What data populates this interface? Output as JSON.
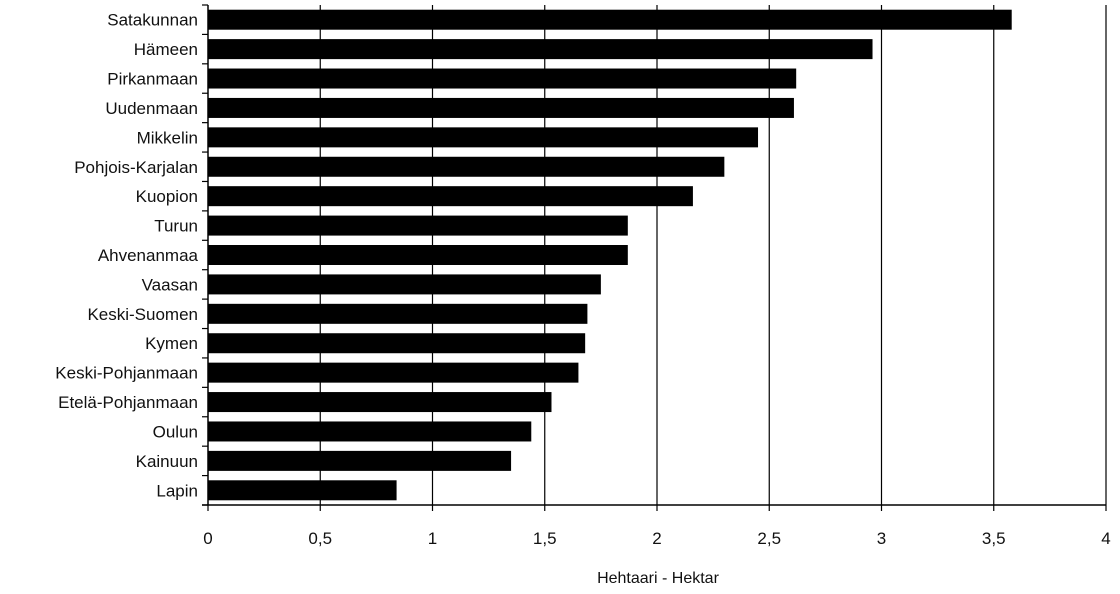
{
  "chart_data": {
    "type": "bar",
    "orientation": "horizontal",
    "categories": [
      "Satakunnan",
      "Hämeen",
      "Pirkanmaan",
      "Uudenmaan",
      "Mikkelin",
      "Pohjois-Karjalan",
      "Kuopion",
      "Turun",
      "Ahvenanmaa",
      "Vaasan",
      "Keski-Suomen",
      "Kymen",
      "Keski-Pohjanmaan",
      "Etelä-Pohjanmaan",
      "Oulun",
      "Kainuun",
      "Lapin"
    ],
    "values": [
      3.58,
      2.96,
      2.62,
      2.61,
      2.45,
      2.3,
      2.16,
      1.87,
      1.87,
      1.75,
      1.69,
      1.68,
      1.65,
      1.53,
      1.44,
      1.35,
      0.84
    ],
    "xlabel": "Hehtaari - Hektar",
    "ylabel": "",
    "xlim": [
      0,
      4
    ],
    "xticks": [
      0,
      0.5,
      1,
      1.5,
      2,
      2.5,
      3,
      3.5,
      4
    ],
    "xtick_labels": [
      "0",
      "0,5",
      "1",
      "1,5",
      "2",
      "2,5",
      "3",
      "3,5",
      "4"
    ],
    "grid": "vertical",
    "legend": "none",
    "bar_color": "#000000",
    "grid_color": "#000000"
  }
}
